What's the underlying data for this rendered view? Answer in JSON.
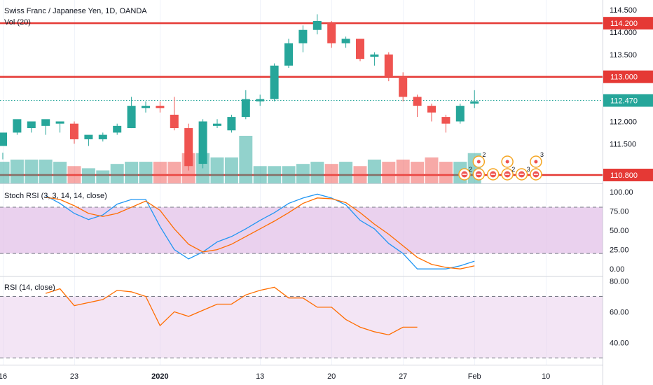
{
  "header": {
    "symbol": "Swiss Franc / Japanese Yen, 1D, OANDA",
    "volume": "Vol (20)"
  },
  "colors": {
    "up": "#26a69a",
    "down": "#ef5350",
    "level": "#e53935",
    "stoch_k": "#2196f3",
    "stoch_d": "#ff6d00",
    "rsi": "#ff6d00",
    "band": "#e1bee7"
  },
  "chart_data": [
    {
      "type": "candlestick",
      "title": "Swiss Franc / Japanese Yen, 1D, OANDA",
      "xlabels": [
        {
          "i": 0,
          "label": "16"
        },
        {
          "i": 5,
          "label": "23"
        },
        {
          "i": 11,
          "label": "2020"
        },
        {
          "i": 18,
          "label": "13"
        },
        {
          "i": 23,
          "label": "20"
        },
        {
          "i": 28,
          "label": "27"
        },
        {
          "i": 33,
          "label": "Feb"
        },
        {
          "i": 38,
          "label": "10"
        }
      ],
      "ylim": [
        110.8,
        114.72
      ],
      "yticks": [
        "114.500",
        "114.000",
        "113.500",
        "112.000",
        "111.500"
      ],
      "ohlc": [
        [
          111.45,
          111.75,
          111.3,
          111.15
        ],
        [
          111.75,
          112.05,
          111.7,
          111.95
        ],
        [
          111.85,
          112.0,
          111.95,
          111.75
        ],
        [
          111.9,
          112.05,
          111.95,
          111.7
        ],
        [
          111.95,
          112.0,
          111.95,
          111.75
        ],
        [
          111.95,
          111.6,
          112.0,
          111.5
        ],
        [
          111.6,
          111.7,
          111.65,
          111.45
        ],
        [
          111.6,
          111.7,
          111.75,
          111.55
        ],
        [
          111.75,
          111.9,
          111.95,
          111.7
        ],
        [
          111.85,
          112.35,
          112.55,
          111.85
        ],
        [
          112.3,
          112.35,
          112.45,
          112.2
        ],
        [
          112.35,
          112.3,
          112.45,
          112.2
        ],
        [
          112.15,
          111.85,
          112.55,
          111.8
        ],
        [
          111.85,
          111.0,
          111.95,
          110.9
        ],
        [
          111.05,
          112.0,
          112.05,
          110.95
        ],
        [
          111.9,
          111.95,
          112.05,
          111.85
        ],
        [
          111.8,
          112.1,
          112.15,
          111.75
        ],
        [
          112.1,
          112.5,
          112.7,
          112.05
        ],
        [
          112.45,
          112.5,
          112.6,
          112.35
        ],
        [
          112.5,
          113.25,
          113.3,
          112.45
        ],
        [
          113.25,
          113.75,
          113.85,
          113.2
        ],
        [
          113.75,
          114.05,
          114.15,
          113.55
        ],
        [
          114.05,
          114.25,
          114.4,
          113.95
        ],
        [
          114.2,
          113.75,
          114.25,
          113.65
        ],
        [
          113.75,
          113.85,
          113.9,
          113.65
        ],
        [
          113.85,
          113.4,
          113.85,
          113.35
        ],
        [
          113.45,
          113.5,
          113.55,
          113.25
        ],
        [
          113.5,
          113.0,
          113.55,
          112.9
        ],
        [
          113.0,
          112.55,
          113.1,
          112.45
        ],
        [
          112.55,
          112.35,
          112.6,
          112.1
        ],
        [
          112.35,
          112.2,
          112.4,
          112.0
        ],
        [
          112.1,
          111.95,
          112.15,
          111.75
        ],
        [
          112.0,
          112.35,
          112.4,
          111.95
        ],
        [
          112.4,
          112.45,
          112.7,
          112.3
        ]
      ],
      "price_tags": [
        {
          "value": 114.2,
          "label": "114.200",
          "line": true
        },
        {
          "value": 113.0,
          "label": "113.000",
          "line": true
        },
        {
          "value": 112.47,
          "label": "112.470",
          "line": false
        },
        {
          "value": 110.8,
          "label": "110.800",
          "line": true
        }
      ]
    },
    {
      "type": "bar",
      "title": "Vol (20)",
      "values": [
        10,
        11,
        11,
        11,
        10,
        8,
        7,
        6,
        9,
        10,
        10,
        10,
        10,
        14,
        14,
        12,
        12,
        22,
        8,
        8,
        8,
        9,
        10,
        9,
        10,
        8,
        11,
        10,
        11,
        10,
        12,
        10,
        10,
        14
      ],
      "event_labels": [
        "2",
        "2",
        "2",
        "3",
        "3"
      ]
    },
    {
      "type": "line",
      "title": "Stoch RSI (3, 3, 14, 14, close)",
      "ylim": [
        -8,
        110
      ],
      "yticks": [
        "100.00",
        "75.00",
        "50.00",
        "25.00",
        "0.00"
      ],
      "bands": [
        20,
        80
      ],
      "series": [
        {
          "values": [
            95,
            85,
            72,
            64,
            70,
            84,
            90,
            90,
            55,
            25,
            13,
            22,
            35,
            42,
            52,
            63,
            73,
            85,
            92,
            97,
            92,
            83,
            63,
            52,
            33,
            20,
            0,
            0,
            0,
            4,
            10
          ]
        },
        {
          "values": [
            93,
            90,
            82,
            72,
            68,
            72,
            80,
            88,
            76,
            52,
            32,
            22,
            25,
            32,
            42,
            52,
            62,
            73,
            85,
            92,
            91,
            86,
            73,
            58,
            45,
            30,
            15,
            6,
            2,
            0,
            4
          ]
        }
      ]
    },
    {
      "type": "line",
      "title": "RSI (14, close)",
      "ylim": [
        26,
        83
      ],
      "yticks": [
        "80.00",
        "60.00",
        "40.00"
      ],
      "bands": [
        30,
        70
      ],
      "series": [
        {
          "values": [
            72,
            75,
            64,
            66,
            68,
            74,
            73,
            70,
            51,
            60,
            57,
            61,
            65,
            65,
            71,
            74,
            76,
            69,
            69,
            63,
            63,
            55,
            50,
            47,
            45,
            50,
            50
          ]
        }
      ]
    }
  ]
}
